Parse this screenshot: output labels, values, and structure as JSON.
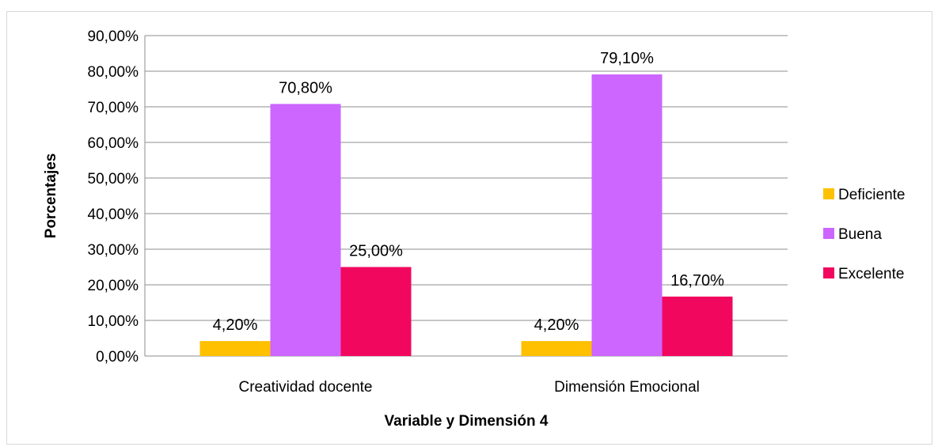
{
  "chart_data": {
    "type": "bar",
    "title": "",
    "xlabel": "Variable y Dimensión 4",
    "ylabel": "Porcentajes",
    "ylim": [
      0,
      90
    ],
    "yticks": [
      "0,00%",
      "10,00%",
      "20,00%",
      "30,00%",
      "40,00%",
      "50,00%",
      "60,00%",
      "70,00%",
      "80,00%",
      "90,00%"
    ],
    "categories": [
      "Creatividad docente",
      "Dimensión Emocional"
    ],
    "series": [
      {
        "name": "Deficiente",
        "color": "#FFC000",
        "values": [
          4.2,
          4.2
        ],
        "labels": [
          "4,20%",
          "4,20%"
        ]
      },
      {
        "name": "Buena",
        "color": "#CC66FF",
        "values": [
          70.8,
          79.1
        ],
        "labels": [
          "70,80%",
          "79,10%"
        ]
      },
      {
        "name": "Excelente",
        "color": "#F2075F",
        "values": [
          25.0,
          16.7
        ],
        "labels": [
          "25,00%",
          "16,70%"
        ]
      }
    ],
    "grid": true,
    "legend": "right"
  }
}
